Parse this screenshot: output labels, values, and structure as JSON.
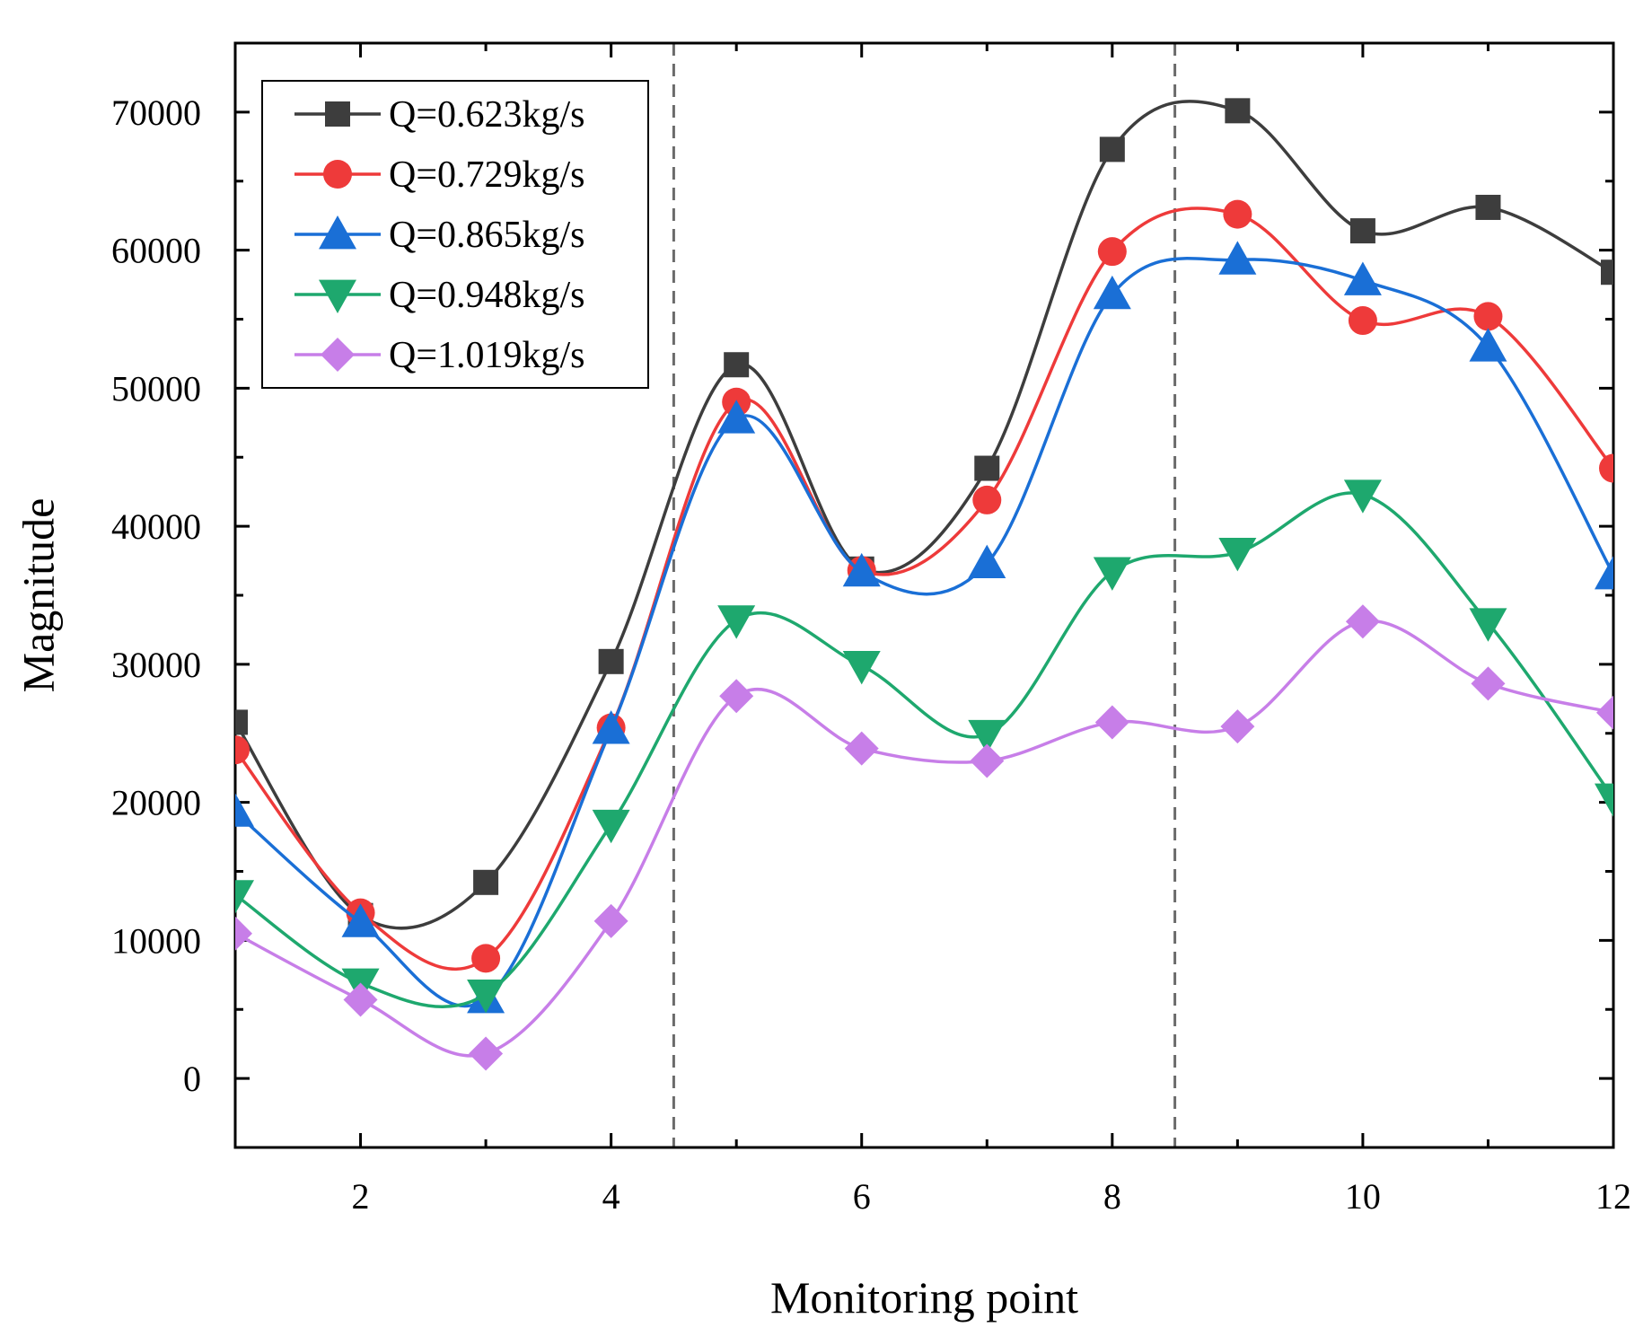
{
  "chart_data": {
    "type": "line",
    "smooth": true,
    "xlabel": "Monitoring point",
    "ylabel": "Magnitude",
    "xlim": [
      1,
      12
    ],
    "ylim": [
      -5000,
      75000
    ],
    "xticks": [
      2,
      4,
      6,
      8,
      10,
      12
    ],
    "yticks": [
      0,
      10000,
      20000,
      30000,
      40000,
      50000,
      60000,
      70000
    ],
    "x": [
      1,
      2,
      3,
      4,
      5,
      6,
      7,
      8,
      9,
      10,
      11,
      12
    ],
    "vlines": [
      4.5,
      8.5
    ],
    "grid": false,
    "legend_position": "top-left",
    "series": [
      {
        "name": "Q=0.623kg/s",
        "color": "#3d3d3d",
        "marker": "square",
        "values": [
          25800,
          11800,
          14200,
          30200,
          51700,
          36900,
          44200,
          67300,
          70100,
          61400,
          63100,
          58400
        ]
      },
      {
        "name": "Q=0.729kg/s",
        "color": "#ee3a3a",
        "marker": "circle",
        "values": [
          23800,
          12000,
          8700,
          25400,
          49000,
          36800,
          41900,
          59900,
          62600,
          54900,
          55200,
          44200
        ]
      },
      {
        "name": "Q=0.865kg/s",
        "color": "#1a6fd6",
        "marker": "triangle-up",
        "values": [
          19300,
          11300,
          5800,
          25300,
          47800,
          36700,
          37300,
          56800,
          59300,
          57800,
          53000,
          36500
        ]
      },
      {
        "name": "Q=0.948kg/s",
        "color": "#1ea86e",
        "marker": "triangle-down",
        "values": [
          13300,
          6900,
          6100,
          18400,
          33200,
          29900,
          24900,
          36700,
          38100,
          42300,
          33000,
          20300
        ]
      },
      {
        "name": "Q=1.019kg/s",
        "color": "#c77ee8",
        "marker": "diamond",
        "values": [
          10500,
          5700,
          1800,
          11400,
          27700,
          23900,
          23000,
          25800,
          25500,
          33100,
          28600,
          26500
        ]
      }
    ]
  }
}
